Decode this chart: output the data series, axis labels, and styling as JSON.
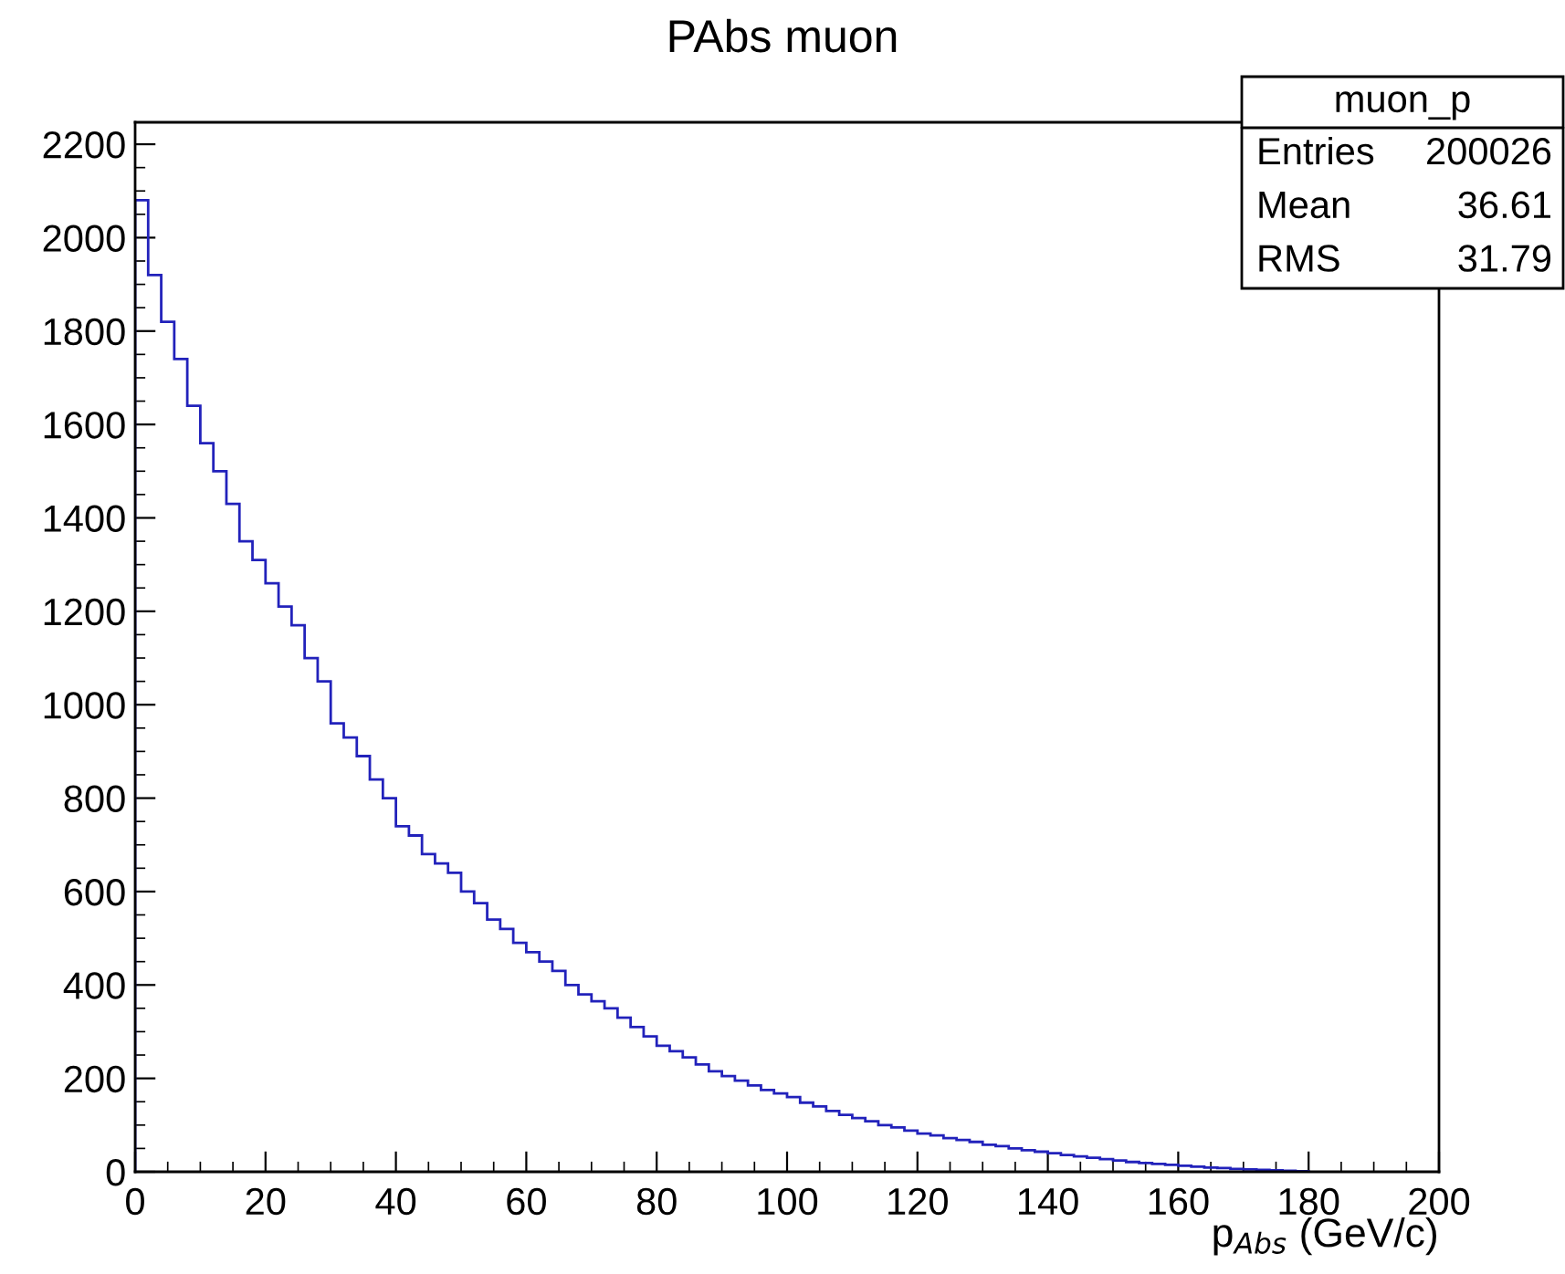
{
  "chart_data": {
    "type": "histogram",
    "title": "PAbs muon",
    "xlabel": "p$_{Abs}$ (GeV/c)",
    "bins": [
      0,
      2,
      4,
      6,
      8,
      10,
      12,
      14,
      16,
      18,
      20,
      22,
      24,
      26,
      28,
      30,
      32,
      34,
      36,
      38,
      40,
      42,
      44,
      46,
      48,
      50,
      52,
      54,
      56,
      58,
      60,
      62,
      64,
      66,
      68,
      70,
      72,
      74,
      76,
      78,
      80,
      82,
      84,
      86,
      88,
      90,
      92,
      94,
      96,
      98,
      100,
      102,
      104,
      106,
      108,
      110,
      112,
      114,
      116,
      118,
      120,
      122,
      124,
      126,
      128,
      130,
      132,
      134,
      136,
      138,
      140,
      142,
      144,
      146,
      148,
      150,
      152,
      154,
      156,
      158,
      160,
      162,
      164,
      166,
      168,
      170,
      172,
      174,
      176,
      178,
      180
    ],
    "values": [
      2080,
      1920,
      1820,
      1740,
      1640,
      1560,
      1500,
      1430,
      1350,
      1310,
      1260,
      1210,
      1170,
      1100,
      1050,
      960,
      930,
      890,
      840,
      800,
      740,
      720,
      680,
      660,
      640,
      600,
      575,
      540,
      520,
      490,
      470,
      450,
      430,
      400,
      380,
      365,
      350,
      330,
      310,
      290,
      270,
      258,
      245,
      230,
      215,
      205,
      195,
      185,
      175,
      168,
      160,
      148,
      140,
      130,
      122,
      115,
      108,
      100,
      95,
      88,
      82,
      78,
      72,
      68,
      64,
      58,
      55,
      50,
      46,
      43,
      40,
      36,
      33,
      30,
      27,
      24,
      21,
      19,
      17,
      15,
      13,
      11,
      9,
      8,
      6,
      5,
      4,
      3,
      2,
      1
    ],
    "color": "#2222bb",
    "xlim": [
      0,
      200
    ],
    "ylim": [
      0,
      2247
    ],
    "xticks": [
      0,
      20,
      40,
      60,
      80,
      100,
      120,
      140,
      160,
      180,
      200
    ],
    "yticks": [
      0,
      200,
      400,
      600,
      800,
      1000,
      1200,
      1400,
      1600,
      1800,
      2000,
      2200
    ],
    "grid": false,
    "annotations": [
      "muon_p",
      "Entries",
      "200026",
      "Mean",
      "36.61",
      "RMS",
      "31.79"
    ]
  }
}
